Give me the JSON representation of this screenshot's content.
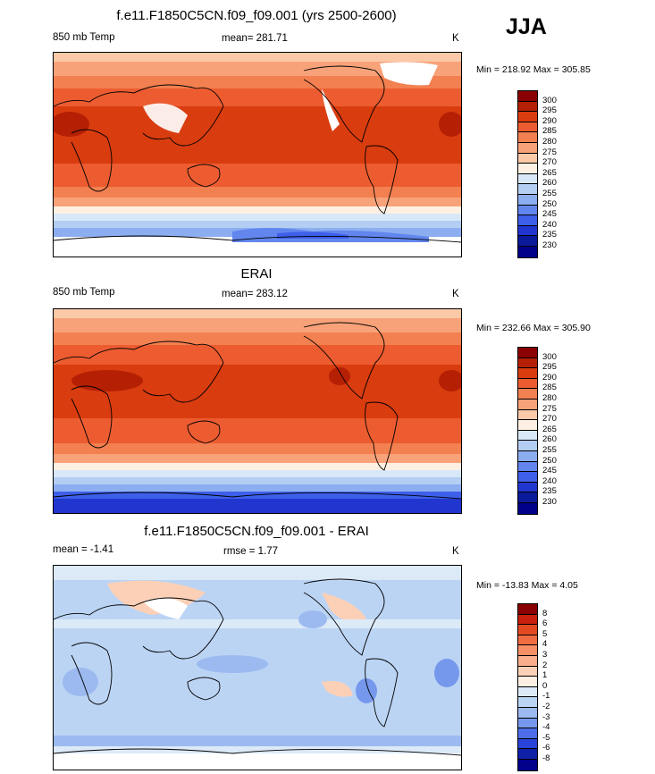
{
  "season": "JJA",
  "panels": [
    {
      "title": "f.e11.F1850C5CN.f09_f09.001 (yrs 2500-2600)",
      "left_label": "850 mb Temp",
      "center_label": "mean= 281.71",
      "right_label": "K",
      "minmax": "Min = 218.92 Max = 305.85",
      "colorbar": {
        "levels": [
          "300",
          "295",
          "290",
          "285",
          "280",
          "275",
          "270",
          "265",
          "260",
          "255",
          "250",
          "245",
          "240",
          "235",
          "230"
        ],
        "colors": [
          "#8b0000",
          "#b52004",
          "#d93c0f",
          "#ec5c30",
          "#f38050",
          "#f8a27a",
          "#fbc9a8",
          "#fdf0e3",
          "#d8e8f8",
          "#b3cef2",
          "#8caef0",
          "#6286ee",
          "#3e5fe9",
          "#2036cf",
          "#0a1a9a",
          "#00008b"
        ]
      }
    },
    {
      "title": "ERAI",
      "left_label": "850 mb Temp",
      "center_label": "mean= 283.12",
      "right_label": "K",
      "minmax": "Min = 232.66 Max = 305.90",
      "colorbar": {
        "levels": [
          "300",
          "295",
          "290",
          "285",
          "280",
          "275",
          "270",
          "265",
          "260",
          "255",
          "250",
          "245",
          "240",
          "235",
          "230"
        ],
        "colors": [
          "#8b0000",
          "#b52004",
          "#d93c0f",
          "#ec5c30",
          "#f38050",
          "#f8a27a",
          "#fbc9a8",
          "#fdf0e3",
          "#d8e8f8",
          "#b3cef2",
          "#8caef0",
          "#6286ee",
          "#3e5fe9",
          "#2036cf",
          "#0a1a9a",
          "#00008b"
        ]
      }
    },
    {
      "title": "f.e11.F1850C5CN.f09_f09.001 - ERAI",
      "left_label": "mean =  -1.41",
      "center_label": "rmse =   1.77",
      "right_label": "K",
      "minmax": "Min = -13.83 Max =   4.05",
      "colorbar": {
        "levels": [
          "8",
          "6",
          "5",
          "4",
          "3",
          "2",
          "1",
          "0",
          "-1",
          "-2",
          "-3",
          "-4",
          "-5",
          "-6",
          "-8"
        ],
        "colors": [
          "#8b0000",
          "#c8200c",
          "#e44a22",
          "#f26c42",
          "#f78f66",
          "#faae8c",
          "#fcd0b6",
          "#fdeee2",
          "#dceaf8",
          "#bcd4f4",
          "#9cbaf0",
          "#7698ec",
          "#4d6ee8",
          "#2a43d8",
          "#0f1fa8",
          "#00008b"
        ]
      }
    }
  ]
}
